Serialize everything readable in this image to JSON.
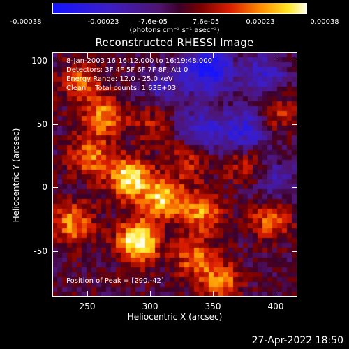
{
  "colorbar": {
    "ticks": [
      "-0.00038",
      "-0.00023",
      "-7.6e-05",
      "7.6e-05",
      "0.00023",
      "0.00038"
    ],
    "units": "(photons cm⁻² s⁻¹ asec⁻²)",
    "vmin": -0.00038,
    "vmax": 0.00038
  },
  "chart_data": {
    "type": "heatmap",
    "title": "Reconstructed RHESSI Image",
    "xlabel": "Heliocentric X (arcsec)",
    "ylabel": "Heliocentric Y (arcsec)",
    "xlim": [
      222,
      416
    ],
    "ylim": [
      -86,
      108
    ],
    "xticks": [
      "250",
      "300",
      "350",
      "400"
    ],
    "yticks": [
      "100",
      "50",
      "0",
      "-50"
    ],
    "peak": [
      290,
      -42
    ],
    "bright_regions": [
      {
        "x": 290,
        "y": -42,
        "level": 1.0
      },
      {
        "x": 283,
        "y": 8,
        "level": 0.9
      },
      {
        "x": 310,
        "y": -8,
        "level": 0.75
      },
      {
        "x": 262,
        "y": 57,
        "level": 0.6
      },
      {
        "x": 340,
        "y": -18,
        "level": 0.6
      },
      {
        "x": 252,
        "y": 25,
        "level": 0.55
      },
      {
        "x": 238,
        "y": -28,
        "level": 0.6
      },
      {
        "x": 335,
        "y": -55,
        "level": 0.5
      },
      {
        "x": 355,
        "y": -75,
        "level": 0.55
      },
      {
        "x": 395,
        "y": -25,
        "level": 0.5
      },
      {
        "x": 330,
        "y": 25,
        "level": 0.4
      },
      {
        "x": 245,
        "y": 85,
        "level": 0.45
      },
      {
        "x": 300,
        "y": 55,
        "level": 0.3
      },
      {
        "x": 400,
        "y": 60,
        "level": 0.35
      },
      {
        "x": 375,
        "y": 20,
        "level": 0.35
      }
    ],
    "dark_regions": [
      {
        "x": 345,
        "y": 95,
        "level": -0.9
      },
      {
        "x": 390,
        "y": 90,
        "level": -0.5
      },
      {
        "x": 340,
        "y": 45,
        "level": -0.55
      },
      {
        "x": 375,
        "y": 45,
        "level": -0.6
      },
      {
        "x": 400,
        "y": 5,
        "level": -0.35
      },
      {
        "x": 310,
        "y": 80,
        "level": -0.4
      }
    ]
  },
  "info": {
    "line1": "8-Jan-2003 16:16:12.000 to 16:19:48.000",
    "line2": "Detectors: 3F 4F 5F 6F 7F 8F, Att 0",
    "line3": "Energy Range: 12.0 - 25.0 keV",
    "line4": "Clean    Total counts: 1.63E+03",
    "peak": "Position of Peak = [290,-42]"
  },
  "timestamp": "27-Apr-2022 18:50"
}
